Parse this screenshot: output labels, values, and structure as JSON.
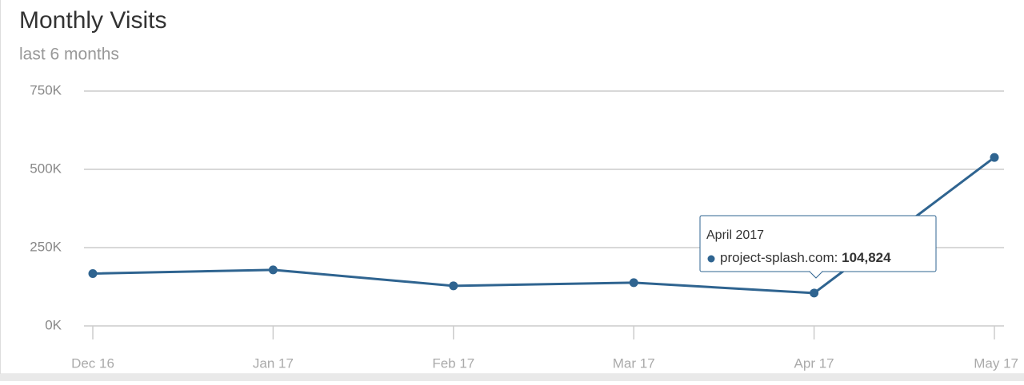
{
  "chart_data": {
    "type": "line",
    "title": "Monthly Visits",
    "subtitle": "last 6 months",
    "categories": [
      "Dec 16",
      "Jan 17",
      "Feb 17",
      "Mar 17",
      "Apr 17",
      "May 17"
    ],
    "values": [
      167000,
      179000,
      128000,
      138000,
      104824,
      538000
    ],
    "color": "#2f6490",
    "ylim": [
      0,
      750000
    ],
    "yticks": [
      {
        "value": 0,
        "label": "0K"
      },
      {
        "value": 250000,
        "label": "250K"
      },
      {
        "value": 500000,
        "label": "500K"
      },
      {
        "value": 750000,
        "label": "750K"
      }
    ],
    "grid": true,
    "tooltip": {
      "title": "April 2017",
      "series_label": "project-splash.com:",
      "value_label": "104,824"
    }
  }
}
